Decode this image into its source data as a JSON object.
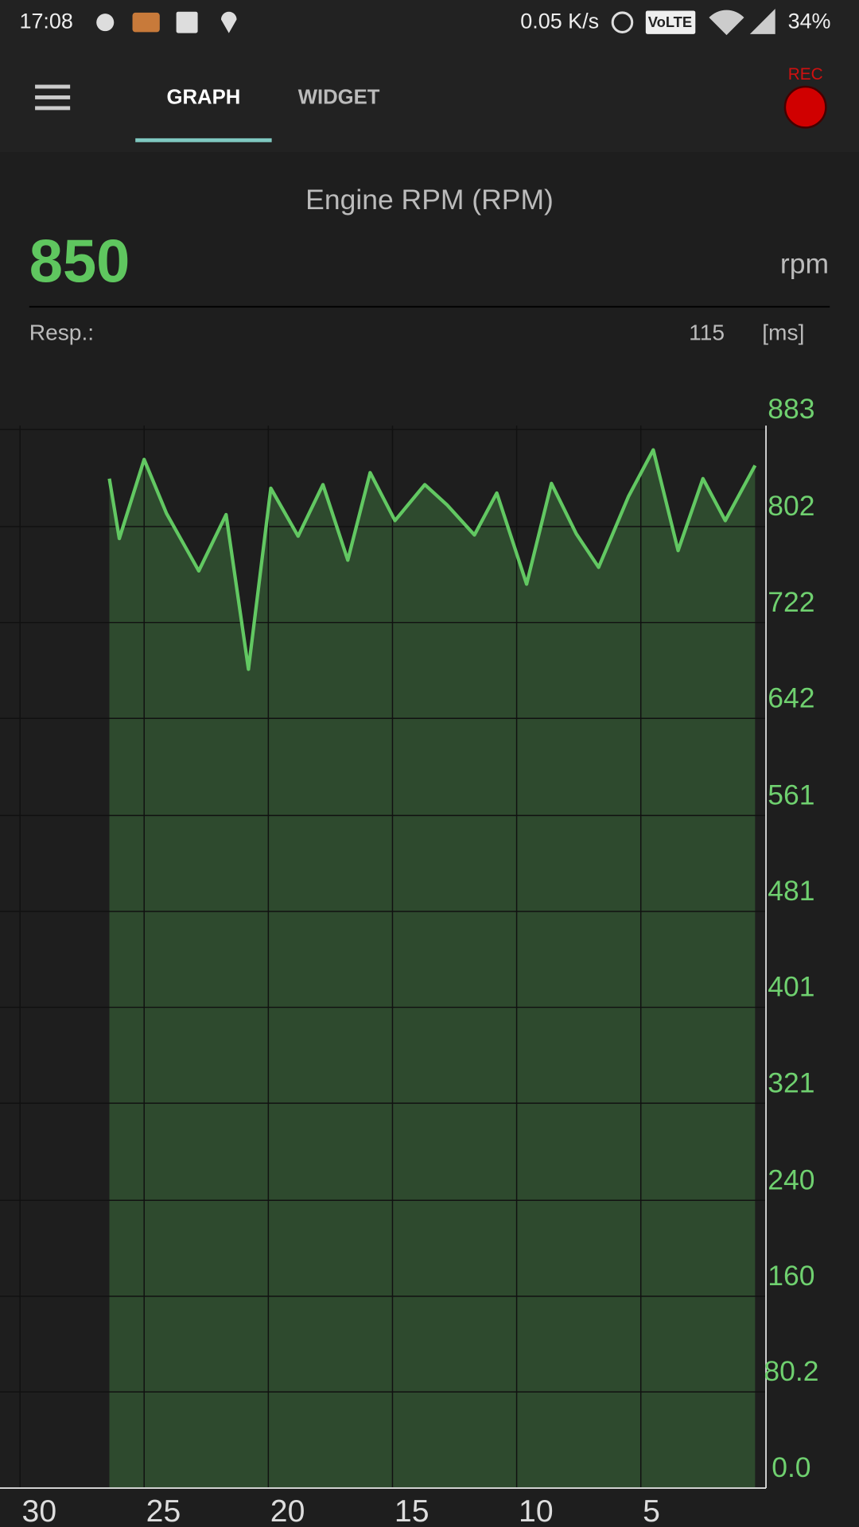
{
  "status_bar": {
    "time": "17:08",
    "network_speed": "0.05 K/s",
    "volte": "VoLTE",
    "battery": "34%"
  },
  "tabs": [
    "GRAPH",
    "WIDGET"
  ],
  "rec_label": "REC",
  "title": "Engine RPM (RPM)",
  "current_value": 850,
  "unit": "rpm",
  "response": {
    "label": "Resp.:",
    "value": 115,
    "unit": "[ms]"
  },
  "chart_data": {
    "type": "line",
    "color": "#62c862",
    "fill": "#2e4a2e",
    "grid": true,
    "x": [
      26.4,
      26.0,
      25.0,
      24.1,
      22.8,
      21.7,
      20.8,
      19.9,
      18.8,
      17.8,
      16.8,
      15.9,
      14.9,
      13.7,
      12.8,
      11.7,
      10.8,
      9.6,
      8.6,
      7.6,
      6.7,
      5.5,
      4.5,
      3.5,
      2.5,
      1.6,
      0.4
    ],
    "values": [
      842,
      792,
      858,
      813,
      765,
      812,
      683,
      834,
      794,
      837,
      774,
      847,
      807,
      837,
      820,
      795,
      830,
      754,
      838,
      796,
      768,
      827,
      866,
      782,
      842,
      807,
      853
    ],
    "xlim": [
      30,
      0
    ],
    "xticks": [
      30,
      25,
      20,
      15,
      10,
      5
    ],
    "ylim": [
      0,
      883
    ],
    "yticks": [
      {
        "value": 0,
        "label": "0.0"
      },
      80.2,
      160,
      240,
      321,
      401,
      481,
      561,
      642,
      722,
      802,
      883
    ]
  }
}
